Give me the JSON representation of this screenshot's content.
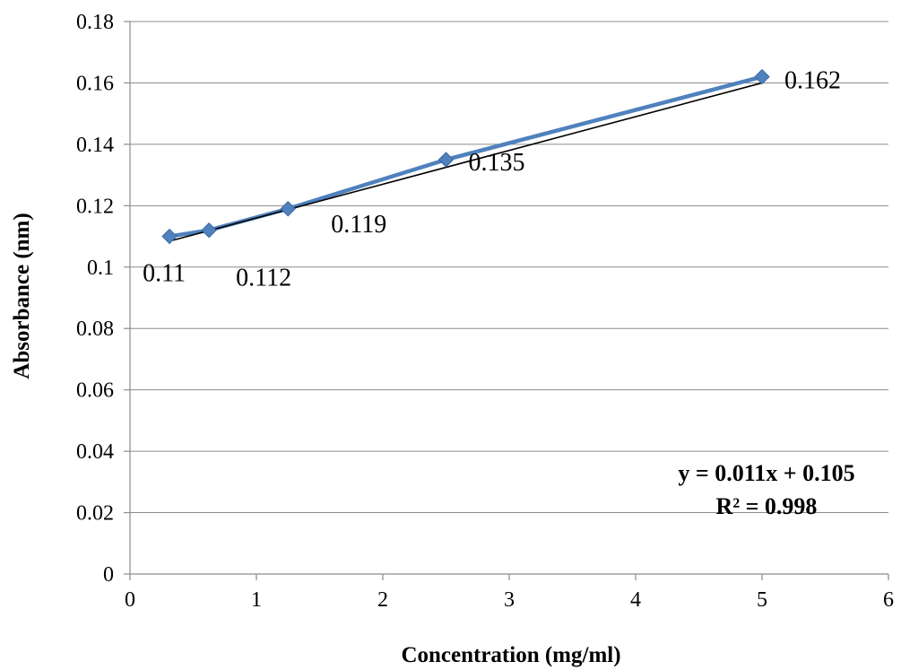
{
  "chart_data": {
    "type": "scatter",
    "xlabel": "Concentration (mg/ml)",
    "ylabel": "Absorbance (nm)",
    "xlim": [
      0,
      6
    ],
    "ylim": [
      0,
      0.18
    ],
    "x_ticks": [
      "0",
      "1",
      "2",
      "3",
      "4",
      "5",
      "6"
    ],
    "y_ticks": [
      "0",
      "0.02",
      "0.04",
      "0.06",
      "0.08",
      "0.1",
      "0.12",
      "0.14",
      "0.16",
      "0.18"
    ],
    "grid": "horizontal",
    "series": [
      {
        "x": [
          0.3125,
          0.625,
          1.25,
          2.5,
          5
        ],
        "y": [
          0.11,
          0.112,
          0.119,
          0.135,
          0.162
        ],
        "data_labels": [
          "0.11",
          "0.112",
          "0.119",
          "0.135",
          "0.162"
        ],
        "color": "#4f81bd",
        "marker": "diamond"
      }
    ],
    "trendline": {
      "type": "linear",
      "slope": 0.011,
      "intercept": 0.105,
      "color": "#000000",
      "equation": "y = 0.011x + 0.105",
      "r_squared": "R² = 0.998"
    }
  }
}
